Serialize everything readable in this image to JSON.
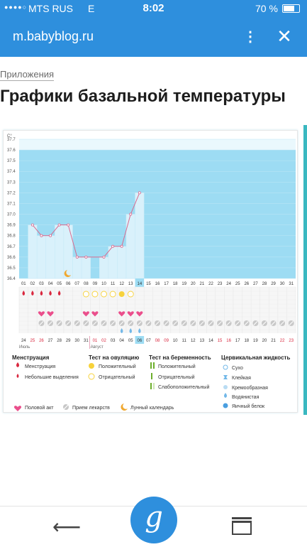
{
  "status_bar": {
    "signal": "●●●●○",
    "carrier": "MTS RUS",
    "network": "E",
    "time": "8:02",
    "battery": "70 %"
  },
  "browser": {
    "url": "m.babyblog.ru"
  },
  "page": {
    "breadcrumb": "Приложения",
    "title": "Графики базальной температуры"
  },
  "chart_data": {
    "type": "bar",
    "y_unit": "C°",
    "ylim": [
      36.4,
      37.7
    ],
    "y_ticks": [
      "36.4",
      "36.5",
      "36.6",
      "36.7",
      "36.8",
      "36.9",
      "37.0",
      "37.1",
      "37.2",
      "37.3",
      "37.4",
      "37.5",
      "37.6",
      "37.7"
    ],
    "days": [
      "01",
      "02",
      "03",
      "04",
      "05",
      "06",
      "07",
      "08",
      "09",
      "10",
      "11",
      "12",
      "13",
      "14",
      "15",
      "16",
      "17",
      "18",
      "19",
      "20",
      "21",
      "22",
      "23",
      "24",
      "25",
      "26",
      "27",
      "28",
      "29",
      "30",
      "31"
    ],
    "temperatures": [
      null,
      36.9,
      36.8,
      36.8,
      36.9,
      36.9,
      36.6,
      36.6,
      null,
      36.6,
      36.7,
      36.7,
      37.0,
      37.2,
      null,
      null,
      null,
      null,
      null,
      null,
      null,
      null,
      null,
      null,
      null,
      null,
      null,
      null,
      null,
      null,
      null
    ],
    "highlight_day": "14",
    "dates_row": [
      "24",
      "25",
      "26",
      "27",
      "28",
      "29",
      "30",
      "31",
      "01",
      "02",
      "03",
      "04",
      "05",
      "06",
      "07",
      "08",
      "09",
      "10",
      "11",
      "12",
      "13",
      "14",
      "15",
      "16",
      "17",
      "18",
      "19",
      "20",
      "21",
      "22",
      "23"
    ],
    "dates_red": [
      "25",
      "26",
      "01",
      "02",
      "08",
      "09",
      "15",
      "16",
      "22",
      "23"
    ],
    "dates_highlight": "06",
    "month_labels": [
      "Июль",
      "Август"
    ],
    "menstruation_days": [
      1,
      2,
      3,
      4,
      5
    ],
    "ovulation_positive_days": [
      12
    ],
    "ovulation_negative_days": [
      8,
      9,
      10,
      11,
      13
    ],
    "intercourse_days": [
      3,
      4,
      8,
      9,
      12,
      13,
      14
    ],
    "medication_days": [
      3,
      4,
      5,
      6,
      7,
      8,
      9,
      10,
      11,
      12,
      13,
      14,
      15,
      16,
      17,
      18,
      19,
      20,
      21,
      22,
      23,
      24,
      25,
      26,
      27,
      28,
      29,
      30,
      31
    ],
    "mucus_days": [
      12,
      13,
      14
    ],
    "lunar_day": 6
  },
  "legend": {
    "col1_title": "Менструация",
    "menstruation": "Менструация",
    "spotting": "Небольшие выделения",
    "col2_title": "Тест на овуляцию",
    "ov_positive": "Положительный",
    "ov_negative": "Отрицательный",
    "col3_title": "Тест на беременность",
    "pr_positive": "Положительный",
    "pr_negative": "Отрицательный",
    "pr_weak": "Слабоположительный",
    "col4_title": "Цервикальная жидкость",
    "cf_dry": "Сухо",
    "cf_sticky": "Клейкая",
    "cf_creamy": "Кремообразная",
    "cf_watery": "Водянистая",
    "cf_egg": "Яичный белок",
    "intercourse": "Половой акт",
    "medication": "Прием лекарств",
    "lunar": "Лунный календарь"
  },
  "colors": {
    "brand": "#2e8fdd",
    "chart_bg": "#9ddcf3",
    "bar": "#d9f1fb",
    "line": "#d96a8e",
    "red": "#d9283f",
    "pink": "#ea4f8c",
    "yellow": "#f7d23b",
    "drop": "#72b8e8"
  }
}
